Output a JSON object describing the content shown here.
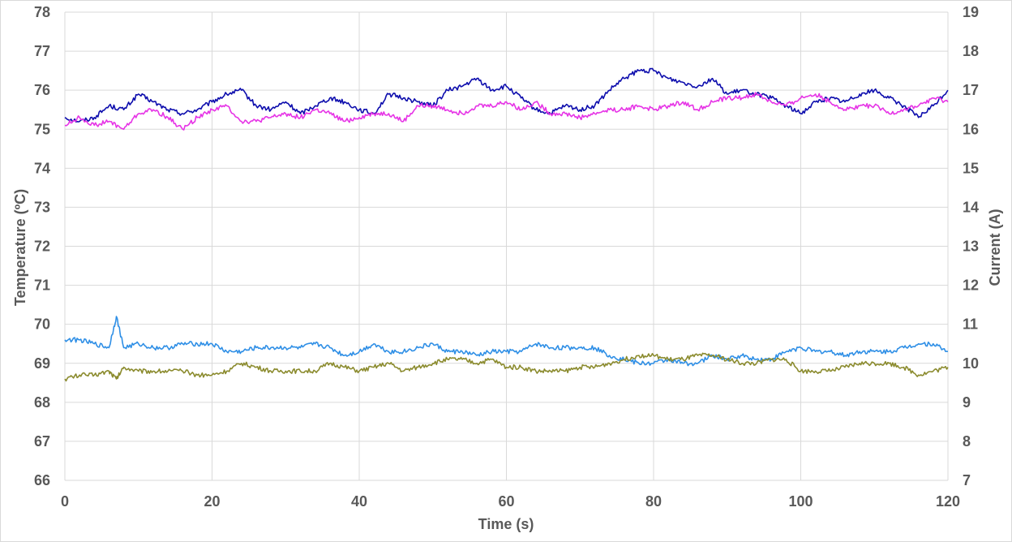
{
  "chart_data": {
    "type": "line",
    "title": "",
    "xlabel": "Time (s)",
    "ylabel_left": "Temperature (ºC)",
    "ylabel_right": "Current (A)",
    "xlim": [
      0,
      120
    ],
    "ylim_left": [
      66,
      78
    ],
    "ylim_right": [
      7,
      19
    ],
    "x_ticks": [
      "0",
      "20",
      "40",
      "60",
      "80",
      "100",
      "120"
    ],
    "y_left_ticks": [
      "66",
      "67",
      "68",
      "69",
      "70",
      "71",
      "72",
      "73",
      "74",
      "75",
      "76",
      "77",
      "78"
    ],
    "y_right_ticks": [
      "7",
      "8",
      "9",
      "10",
      "11",
      "12",
      "13",
      "14",
      "15",
      "16",
      "17",
      "18",
      "19"
    ],
    "grid": true,
    "legend": "none",
    "series": [
      {
        "axis": "left",
        "color": "#0d0dad",
        "x": [
          0,
          2,
          4,
          6,
          8,
          10,
          12,
          14,
          16,
          18,
          20,
          22,
          24,
          26,
          28,
          30,
          32,
          34,
          36,
          38,
          40,
          42,
          44,
          46,
          48,
          50,
          52,
          54,
          56,
          58,
          60,
          62,
          64,
          66,
          68,
          70,
          72,
          74,
          76,
          78,
          80,
          82,
          84,
          86,
          88,
          90,
          92,
          94,
          96,
          98,
          100,
          102,
          104,
          106,
          108,
          110,
          112,
          114,
          116,
          118,
          120
        ],
        "y": [
          75.3,
          75.2,
          75.3,
          75.6,
          75.5,
          75.9,
          75.7,
          75.5,
          75.4,
          75.5,
          75.7,
          75.9,
          76.0,
          75.6,
          75.5,
          75.7,
          75.4,
          75.6,
          75.8,
          75.7,
          75.5,
          75.4,
          75.9,
          75.8,
          75.7,
          75.6,
          76.0,
          76.1,
          76.3,
          76.0,
          76.1,
          75.8,
          75.5,
          75.4,
          75.6,
          75.5,
          75.6,
          76.0,
          76.3,
          76.5,
          76.5,
          76.3,
          76.2,
          76.1,
          76.3,
          75.9,
          76.0,
          75.9,
          75.8,
          75.6,
          75.4,
          75.7,
          75.8,
          75.7,
          75.9,
          76.0,
          75.8,
          75.6,
          75.3,
          75.6,
          76.0
        ]
      },
      {
        "axis": "left",
        "color": "#e634e6",
        "x": [
          0,
          2,
          4,
          6,
          8,
          10,
          12,
          14,
          16,
          18,
          20,
          22,
          24,
          26,
          28,
          30,
          32,
          34,
          36,
          38,
          40,
          42,
          44,
          46,
          48,
          50,
          52,
          54,
          56,
          58,
          60,
          62,
          64,
          66,
          68,
          70,
          72,
          74,
          76,
          78,
          80,
          82,
          84,
          86,
          88,
          90,
          92,
          94,
          96,
          98,
          100,
          102,
          104,
          106,
          108,
          110,
          112,
          114,
          116,
          118,
          120
        ],
        "y": [
          75.1,
          75.3,
          75.1,
          75.2,
          75.0,
          75.4,
          75.5,
          75.3,
          75.0,
          75.3,
          75.5,
          75.6,
          75.2,
          75.2,
          75.3,
          75.4,
          75.3,
          75.5,
          75.4,
          75.2,
          75.3,
          75.4,
          75.4,
          75.2,
          75.6,
          75.6,
          75.5,
          75.4,
          75.6,
          75.6,
          75.7,
          75.5,
          75.7,
          75.4,
          75.4,
          75.3,
          75.4,
          75.5,
          75.5,
          75.6,
          75.5,
          75.6,
          75.7,
          75.5,
          75.7,
          75.8,
          75.8,
          75.9,
          75.7,
          75.6,
          75.8,
          75.9,
          75.7,
          75.5,
          75.6,
          75.6,
          75.4,
          75.5,
          75.6,
          75.8,
          75.7
        ]
      },
      {
        "axis": "right",
        "color": "#2f8fe6",
        "x": [
          0,
          2,
          4,
          6,
          7,
          8,
          10,
          12,
          14,
          16,
          18,
          20,
          22,
          24,
          26,
          28,
          30,
          32,
          34,
          36,
          38,
          40,
          42,
          44,
          46,
          48,
          50,
          52,
          54,
          56,
          58,
          60,
          62,
          64,
          66,
          68,
          70,
          72,
          74,
          76,
          78,
          80,
          82,
          84,
          86,
          88,
          90,
          92,
          94,
          96,
          98,
          100,
          102,
          104,
          106,
          108,
          110,
          112,
          114,
          116,
          118,
          120
        ],
        "y": [
          10.6,
          10.6,
          10.5,
          10.4,
          11.2,
          10.4,
          10.5,
          10.4,
          10.4,
          10.5,
          10.5,
          10.5,
          10.3,
          10.3,
          10.4,
          10.4,
          10.4,
          10.4,
          10.5,
          10.4,
          10.2,
          10.3,
          10.5,
          10.3,
          10.3,
          10.4,
          10.5,
          10.3,
          10.3,
          10.2,
          10.3,
          10.3,
          10.3,
          10.5,
          10.4,
          10.4,
          10.4,
          10.4,
          10.2,
          10.1,
          10.0,
          10.0,
          10.1,
          10.0,
          10.0,
          10.2,
          10.1,
          10.2,
          10.1,
          10.1,
          10.3,
          10.4,
          10.3,
          10.3,
          10.2,
          10.3,
          10.3,
          10.3,
          10.4,
          10.5,
          10.5,
          10.3
        ]
      },
      {
        "axis": "right",
        "color": "#8b8b2e",
        "x": [
          0,
          2,
          4,
          6,
          7,
          8,
          10,
          12,
          14,
          16,
          18,
          20,
          22,
          24,
          26,
          28,
          30,
          32,
          34,
          36,
          38,
          40,
          42,
          44,
          46,
          48,
          50,
          52,
          54,
          56,
          58,
          60,
          62,
          64,
          66,
          68,
          70,
          72,
          74,
          76,
          78,
          80,
          82,
          84,
          86,
          88,
          90,
          92,
          94,
          96,
          98,
          100,
          102,
          104,
          106,
          108,
          110,
          112,
          114,
          116,
          118,
          120
        ],
        "y": [
          9.6,
          9.7,
          9.7,
          9.8,
          9.6,
          9.9,
          9.8,
          9.8,
          9.8,
          9.8,
          9.7,
          9.7,
          9.8,
          10.0,
          9.9,
          9.8,
          9.8,
          9.8,
          9.8,
          10.0,
          9.9,
          9.8,
          9.9,
          10.0,
          9.8,
          9.9,
          10.0,
          10.1,
          10.1,
          10.0,
          10.1,
          9.9,
          9.9,
          9.8,
          9.8,
          9.8,
          9.9,
          9.9,
          10.0,
          10.1,
          10.2,
          10.2,
          10.1,
          10.1,
          10.2,
          10.2,
          10.1,
          10.0,
          10.0,
          10.1,
          10.1,
          9.8,
          9.8,
          9.8,
          9.9,
          10.0,
          10.0,
          10.0,
          9.9,
          9.7,
          9.8,
          9.9
        ]
      }
    ]
  }
}
